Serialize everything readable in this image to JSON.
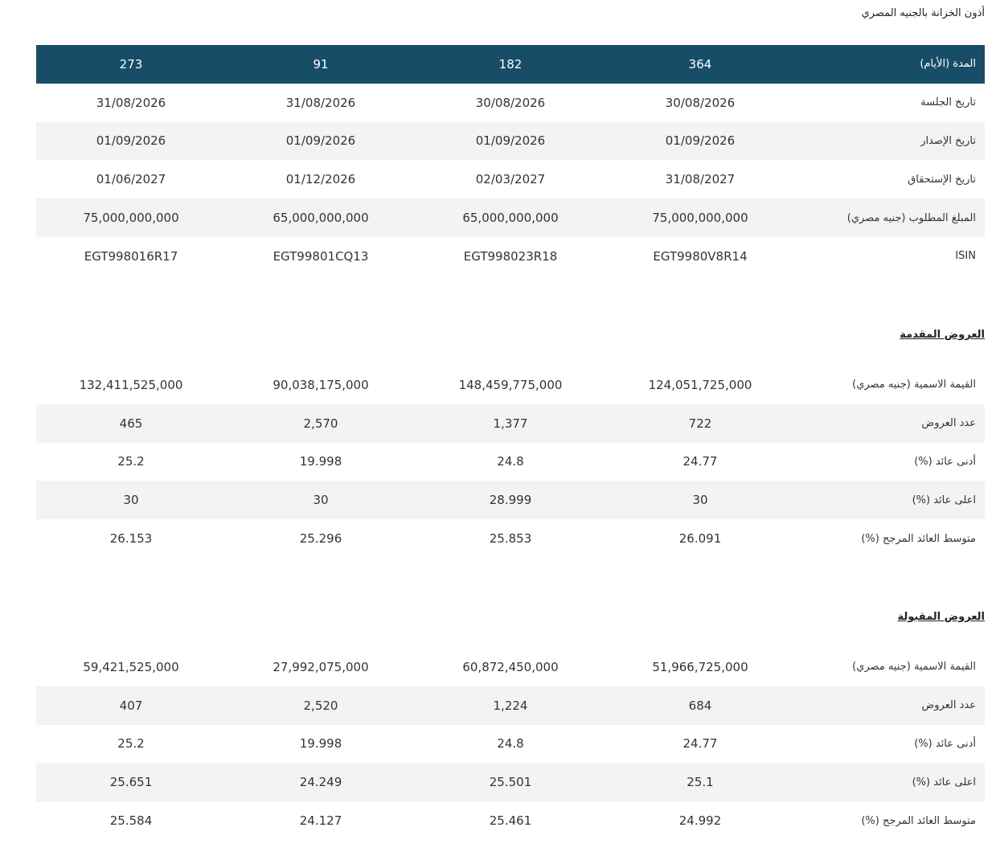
{
  "title": "أذون الخزانة بالجنيه المصري",
  "table1": {
    "header": [
      "المدة (الأيام)",
      "364",
      "182",
      "91",
      "273"
    ],
    "rows": [
      [
        "تاريخ الجلسة",
        "30/08/2026",
        "30/08/2026",
        "31/08/2026",
        "31/08/2026"
      ],
      [
        "تاريخ الإصدار",
        "01/09/2026",
        "01/09/2026",
        "01/09/2026",
        "01/09/2026"
      ],
      [
        "تاريخ الإستحقاق",
        "31/08/2027",
        "02/03/2027",
        "01/12/2026",
        "01/06/2027"
      ],
      [
        "المبلغ المطلوب (جنيه مصري)",
        "75,000,000,000",
        "65,000,000,000",
        "65,000,000,000",
        "75,000,000,000"
      ],
      [
        "ISIN",
        "EGT9980V8R14",
        "EGT998023R18",
        "EGT99801CQ13",
        "EGT998016R17"
      ]
    ]
  },
  "section2": {
    "title": "العروض المقدمة",
    "rows": [
      [
        "القيمة الاسمية (جنيه مصري)",
        "124,051,725,000",
        "148,459,775,000",
        "90,038,175,000",
        "132,411,525,000"
      ],
      [
        "عدد العروض",
        "722",
        "1,377",
        "2,570",
        "465"
      ],
      [
        "أدنى عائد (%)",
        "24.77",
        "24.8",
        "19.998",
        "25.2"
      ],
      [
        "اعلى عائد (%)",
        "30",
        "28.999",
        "30",
        "30"
      ],
      [
        "متوسط العائد المرجح (%)",
        "26.091",
        "25.853",
        "25.296",
        "26.153"
      ]
    ]
  },
  "section3": {
    "title": "العروض المقبولة",
    "rows": [
      [
        "القيمة الاسمية (جنيه مصري)",
        "51,966,725,000",
        "60,872,450,000",
        "27,992,075,000",
        "59,421,525,000"
      ],
      [
        "عدد العروض",
        "684",
        "1,224",
        "2,520",
        "407"
      ],
      [
        "أدنى عائد (%)",
        "24.77",
        "24.8",
        "19.998",
        "25.2"
      ],
      [
        "اعلى عائد (%)",
        "25.1",
        "25.501",
        "24.249",
        "25.651"
      ],
      [
        "متوسط العائد المرجح (%)",
        "24.992",
        "25.461",
        "24.127",
        "25.584"
      ]
    ]
  }
}
